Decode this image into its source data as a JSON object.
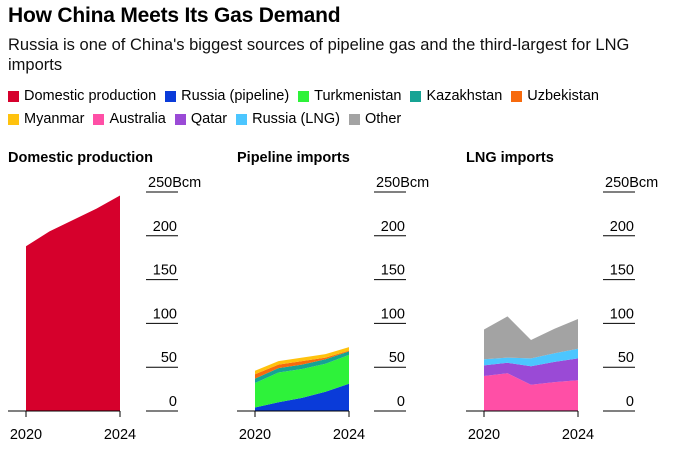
{
  "header": {
    "title": "How China Meets Its Gas Demand",
    "subtitle": "Russia is one of China's biggest sources of pipeline gas and the third-largest for LNG imports"
  },
  "legend": [
    {
      "label": "Domestic production",
      "color": "#d6002c"
    },
    {
      "label": "Russia (pipeline)",
      "color": "#0a3bd9"
    },
    {
      "label": "Turkmenistan",
      "color": "#2ef23a"
    },
    {
      "label": "Kazakhstan",
      "color": "#16a394"
    },
    {
      "label": "Uzbekistan",
      "color": "#f76a0d"
    },
    {
      "label": "Myanmar",
      "color": "#ffc20e"
    },
    {
      "label": "Australia",
      "color": "#ff4fa6"
    },
    {
      "label": "Qatar",
      "color": "#9a4ad6"
    },
    {
      "label": "Russia (LNG)",
      "color": "#4cc6ff"
    },
    {
      "label": "Other",
      "color": "#a3a3a3"
    }
  ],
  "chart_data": [
    {
      "type": "area",
      "title": "Domestic production",
      "x": [
        2020,
        2021,
        2022,
        2023,
        2024
      ],
      "ylim": [
        0,
        250
      ],
      "y_ticks": [
        "250Bcm",
        "200",
        "150",
        "100",
        "50",
        "0"
      ],
      "x_ticks": [
        "2020",
        "2024"
      ],
      "series": [
        {
          "name": "Domestic production",
          "color": "#d6002c",
          "values": [
            188,
            205,
            218,
            231,
            246
          ]
        }
      ]
    },
    {
      "type": "area",
      "title": "Pipeline imports",
      "x": [
        2020,
        2021,
        2022,
        2023,
        2024
      ],
      "ylim": [
        0,
        250
      ],
      "y_ticks": [
        "250Bcm",
        "200",
        "150",
        "100",
        "50",
        "0"
      ],
      "x_ticks": [
        "2020",
        "2024"
      ],
      "series": [
        {
          "name": "Russia (pipeline)",
          "color": "#0a3bd9",
          "values": [
            4,
            10,
            15,
            22,
            31
          ]
        },
        {
          "name": "Turkmenistan",
          "color": "#2ef23a",
          "values": [
            28,
            34,
            33,
            32,
            33
          ]
        },
        {
          "name": "Kazakhstan",
          "color": "#16a394",
          "values": [
            5,
            5,
            5,
            5,
            4
          ]
        },
        {
          "name": "Uzbekistan",
          "color": "#f76a0d",
          "values": [
            5,
            4,
            4,
            2,
            1
          ]
        },
        {
          "name": "Myanmar",
          "color": "#ffc20e",
          "values": [
            4,
            4,
            4,
            4,
            4
          ]
        }
      ]
    },
    {
      "type": "area",
      "title": "LNG imports",
      "x": [
        2020,
        2021,
        2022,
        2023,
        2024
      ],
      "ylim": [
        0,
        250
      ],
      "y_ticks": [
        "250Bcm",
        "200",
        "150",
        "100",
        "50",
        "0"
      ],
      "x_ticks": [
        "2020",
        "2024"
      ],
      "series": [
        {
          "name": "Australia",
          "color": "#ff4fa6",
          "values": [
            40,
            43,
            30,
            33,
            35
          ]
        },
        {
          "name": "Qatar",
          "color": "#9a4ad6",
          "values": [
            12,
            12,
            21,
            23,
            25
          ]
        },
        {
          "name": "Russia (LNG)",
          "color": "#4cc6ff",
          "values": [
            7,
            6,
            9,
            10,
            11
          ]
        },
        {
          "name": "Other",
          "color": "#a3a3a3",
          "values": [
            34,
            47,
            21,
            28,
            34
          ]
        }
      ]
    }
  ]
}
